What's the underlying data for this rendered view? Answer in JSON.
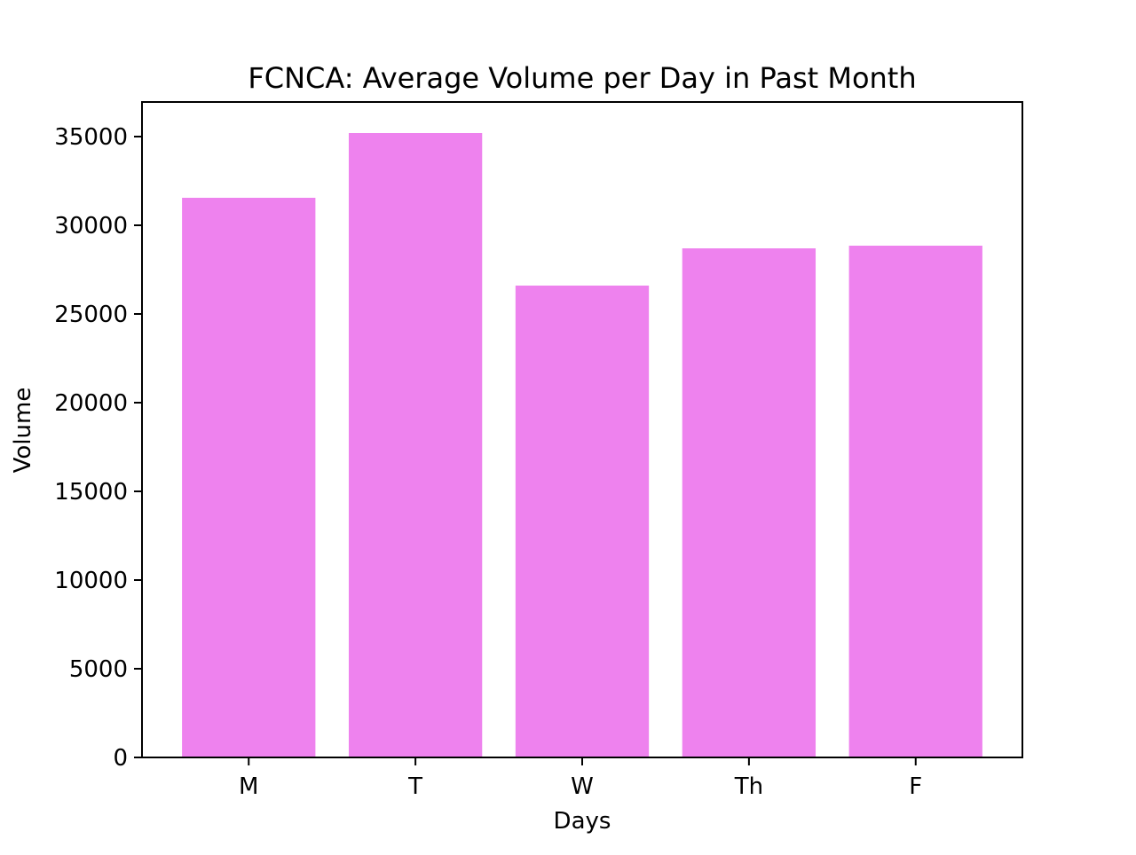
{
  "chart_data": {
    "type": "bar",
    "title": "FCNCA: Average Volume per Day in Past Month",
    "xlabel": "Days",
    "ylabel": "Volume",
    "categories": [
      "M",
      "T",
      "W",
      "Th",
      "F"
    ],
    "values": [
      31550,
      35200,
      26600,
      28700,
      28850
    ],
    "ylim": [
      0,
      36950
    ],
    "yticks": [
      0,
      5000,
      10000,
      15000,
      20000,
      25000,
      30000,
      35000
    ],
    "grid": false,
    "legend": "none",
    "bar_color": "#EE82EE",
    "axis_color": "#000000"
  }
}
